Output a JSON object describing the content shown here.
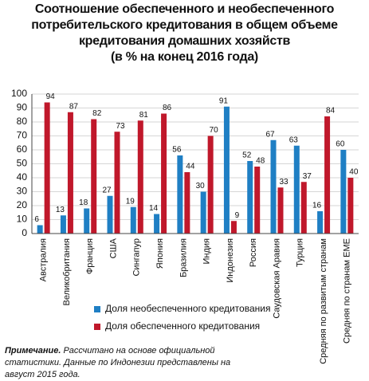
{
  "chart_data": {
    "type": "bar",
    "title": "Соотношение обеспеченного и необеспеченного потребительского кредитования в общем объеме кредитования домашних хозяйств",
    "subtitle": "(в % на конец 2016 года)",
    "categories": [
      "Австралия",
      "Великобритания",
      "Франция",
      "США",
      "Сингапур",
      "Япония",
      "Бразилия",
      "Индия",
      "Индонезия",
      "Россия",
      "Саудовская Аравия",
      "Турция",
      "Средняя по развитым странам",
      "Средняя по странам EME"
    ],
    "series": [
      {
        "name": "Доля необеспеченного кредитования",
        "color": "#1f7fc4",
        "values": [
          6,
          13,
          18,
          27,
          19,
          14,
          56,
          30,
          91,
          52,
          67,
          63,
          16,
          60
        ]
      },
      {
        "name": "Доля обеспеченного кредитования",
        "color": "#c0182b",
        "values": [
          94,
          87,
          82,
          73,
          81,
          86,
          44,
          70,
          9,
          48,
          33,
          37,
          84,
          40
        ]
      }
    ],
    "ylim": [
      0,
      100
    ],
    "yticks": [
      0,
      10,
      20,
      30,
      40,
      50,
      60,
      70,
      80,
      90,
      100
    ],
    "grid": true,
    "note_label": "Примечание.",
    "note": "Рассчитано на основе официальной статистики. Данные по Индонезии представлены на август 2015 года."
  }
}
